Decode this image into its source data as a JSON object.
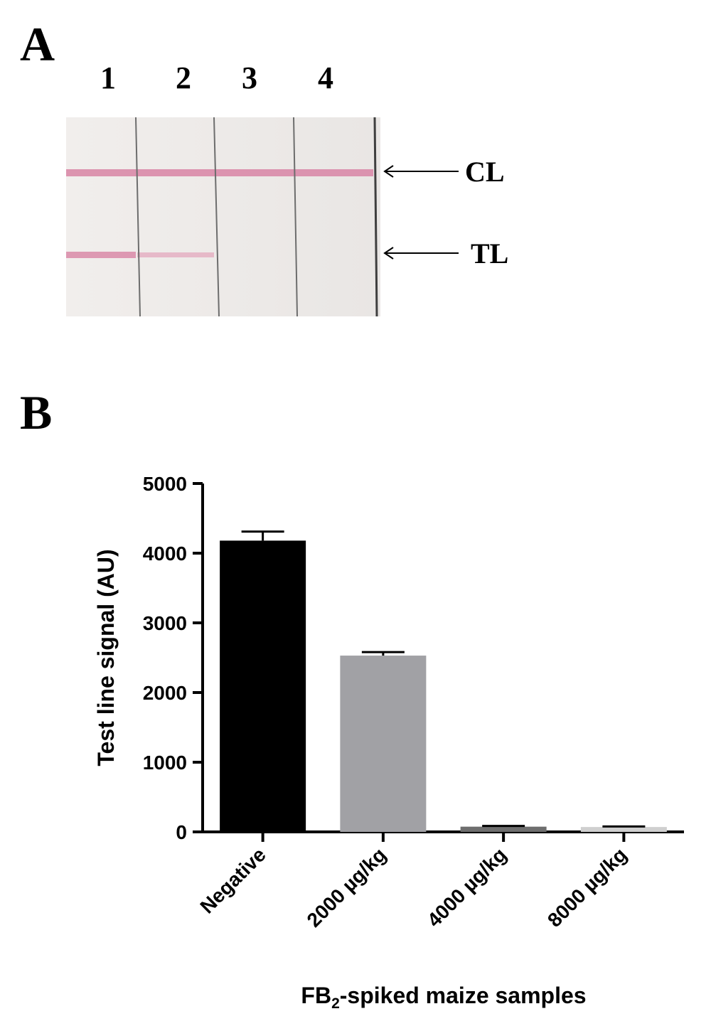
{
  "panel_a": {
    "letter": "A",
    "lanes": [
      "1",
      "2",
      "3",
      "4"
    ],
    "control_line_label": "CL",
    "test_line_label": "TL",
    "line_color": "#d98aa8"
  },
  "panel_b": {
    "letter": "B"
  },
  "chart_data": {
    "type": "bar",
    "categories": [
      "Negative",
      "2000 µg/kg",
      "4000 µg/kg",
      "8000 µg/kg"
    ],
    "values": [
      4180,
      2530,
      75,
      70
    ],
    "errors": [
      130,
      50,
      10,
      8
    ],
    "colors": [
      "#000000",
      "#a1a1a5",
      "#6e6e6e",
      "#cfcfcf"
    ],
    "ylabel": "Test line signal (AU)",
    "xlabel_prefix": "FB",
    "xlabel_subscript": "2",
    "xlabel_suffix": "-spiked maize samples",
    "ylim": [
      0,
      5000
    ],
    "yticks": [
      0,
      1000,
      2000,
      3000,
      4000,
      5000
    ]
  }
}
